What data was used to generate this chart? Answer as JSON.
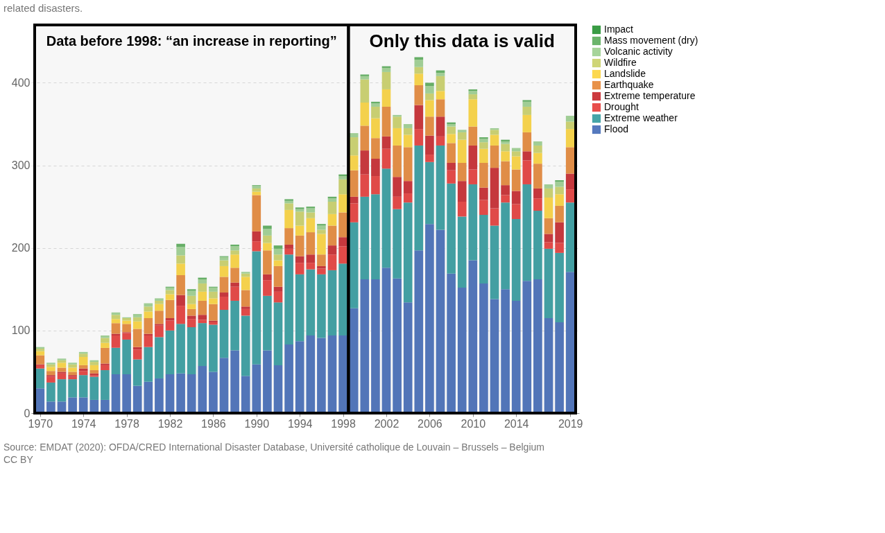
{
  "chart_data": {
    "type": "bar",
    "stacked": true,
    "subtitle": "related disasters.",
    "x": [
      1970,
      1971,
      1972,
      1973,
      1974,
      1975,
      1976,
      1977,
      1978,
      1979,
      1980,
      1981,
      1982,
      1983,
      1984,
      1985,
      1986,
      1987,
      1988,
      1989,
      1990,
      1991,
      1992,
      1993,
      1994,
      1995,
      1996,
      1997,
      1998,
      1999,
      2000,
      2001,
      2002,
      2003,
      2004,
      2005,
      2006,
      2007,
      2008,
      2009,
      2010,
      2011,
      2012,
      2013,
      2014,
      2015,
      2016,
      2017,
      2018,
      2019
    ],
    "xlim": [
      1969.5,
      2019.5
    ],
    "xticks": [
      1970,
      1974,
      1978,
      1982,
      1986,
      1990,
      1994,
      1998,
      2002,
      2006,
      2010,
      2014,
      2019
    ],
    "ylim": [
      0,
      470
    ],
    "yticks": [
      0,
      100,
      200,
      300,
      400
    ],
    "grid": "y",
    "legend": "right",
    "series": [
      {
        "name": "Flood",
        "color": "#5579be",
        "values": [
          30,
          14,
          14,
          19,
          19,
          16,
          16,
          47,
          47,
          33,
          38,
          42,
          47,
          48,
          47,
          57,
          50,
          67,
          76,
          45,
          59,
          76,
          58,
          83,
          87,
          94,
          91,
          94,
          94,
          127,
          162,
          162,
          176,
          163,
          134,
          197,
          229,
          222,
          169,
          152,
          185,
          157,
          138,
          150,
          136,
          160,
          162,
          115,
          110,
          171
        ]
      },
      {
        "name": "Extreme weather",
        "color": "#46a5a8",
        "values": [
          24,
          23,
          27,
          22,
          27,
          28,
          36,
          32,
          42,
          32,
          42,
          50,
          53,
          60,
          57,
          52,
          57,
          58,
          60,
          73,
          137,
          66,
          76,
          109,
          81,
          80,
          77,
          79,
          87,
          104,
          100,
          103,
          120,
          84,
          121,
          127,
          75,
          102,
          109,
          86,
          92,
          83,
          89,
          105,
          99,
          117,
          83,
          84,
          84,
          84
        ]
      },
      {
        "name": "Drought",
        "color": "#e84d4b",
        "values": [
          4,
          7,
          7,
          3,
          5,
          2,
          6,
          15,
          8,
          12,
          14,
          14,
          12,
          22,
          10,
          4,
          3,
          16,
          17,
          8,
          12,
          19,
          13,
          7,
          14,
          8,
          7,
          19,
          21,
          23,
          27,
          22,
          24,
          15,
          11,
          20,
          9,
          11,
          16,
          18,
          18,
          18,
          21,
          9,
          18,
          29,
          15,
          8,
          12,
          16
        ]
      },
      {
        "name": "Extreme temperature",
        "color": "#cc3a3f",
        "values": [
          1,
          2,
          2,
          2,
          3,
          2,
          2,
          2,
          1,
          3,
          2,
          2,
          3,
          13,
          4,
          6,
          2,
          5,
          5,
          3,
          12,
          7,
          6,
          5,
          8,
          10,
          3,
          11,
          11,
          8,
          29,
          21,
          15,
          24,
          15,
          29,
          23,
          24,
          9,
          25,
          29,
          15,
          49,
          12,
          16,
          11,
          12,
          10,
          25,
          19
        ]
      },
      {
        "name": "Earthquake",
        "color": "#e8924a",
        "values": [
          11,
          5,
          5,
          4,
          4,
          4,
          19,
          13,
          10,
          22,
          19,
          16,
          22,
          24,
          8,
          17,
          20,
          19,
          18,
          20,
          44,
          29,
          25,
          20,
          25,
          27,
          14,
          24,
          30,
          32,
          30,
          25,
          36,
          38,
          41,
          24,
          23,
          21,
          24,
          22,
          23,
          30,
          27,
          29,
          26,
          23,
          30,
          19,
          20,
          32
        ]
      },
      {
        "name": "Landslide",
        "color": "#fcd84f",
        "values": [
          5,
          5,
          6,
          5,
          10,
          6,
          6,
          5,
          4,
          9,
          8,
          8,
          7,
          14,
          6,
          11,
          7,
          13,
          16,
          16,
          4,
          9,
          7,
          22,
          12,
          17,
          25,
          14,
          22,
          18,
          28,
          24,
          21,
          21,
          15,
          14,
          20,
          10,
          11,
          28,
          33,
          17,
          13,
          12,
          16,
          21,
          13,
          25,
          14,
          22
        ]
      },
      {
        "name": "Wildfire",
        "color": "#cfd576",
        "values": [
          3,
          3,
          3,
          4,
          4,
          4,
          6,
          5,
          3,
          5,
          6,
          4,
          5,
          10,
          10,
          10,
          8,
          7,
          5,
          4,
          4,
          9,
          7,
          8,
          17,
          7,
          5,
          15,
          18,
          22,
          28,
          14,
          21,
          14,
          8,
          8,
          8,
          18,
          9,
          9,
          6,
          8,
          6,
          9,
          6,
          10,
          9,
          11,
          9,
          9
        ]
      },
      {
        "name": "Volcanic activity",
        "color": "#a6d49a",
        "values": [
          2,
          2,
          2,
          2,
          2,
          2,
          3,
          3,
          1,
          4,
          4,
          3,
          3,
          10,
          6,
          5,
          5,
          4,
          5,
          2,
          3,
          8,
          7,
          3,
          3,
          5,
          5,
          4,
          4,
          5,
          4,
          4,
          5,
          2,
          5,
          9,
          9,
          4,
          3,
          3,
          4,
          4,
          2,
          3,
          4,
          6,
          5,
          5,
          6,
          7
        ]
      },
      {
        "name": "Mass movement (dry)",
        "color": "#6ab46a",
        "values": [
          0,
          0,
          0,
          0,
          0,
          0,
          0,
          0,
          0,
          0,
          0,
          0,
          1,
          4,
          2,
          2,
          1,
          1,
          2,
          0,
          1,
          4,
          4,
          2,
          2,
          2,
          2,
          2,
          2,
          0,
          2,
          2,
          2,
          0,
          0,
          3,
          4,
          3,
          2,
          0,
          2,
          2,
          0,
          2,
          0,
          2,
          0,
          0,
          2,
          0
        ]
      },
      {
        "name": "Impact",
        "color": "#3a9c45",
        "values": [
          0,
          0,
          0,
          0,
          0,
          0,
          0,
          0,
          0,
          0,
          0,
          0,
          0,
          0,
          0,
          0,
          0,
          0,
          0,
          0,
          0,
          0,
          0,
          0,
          0,
          0,
          0,
          0,
          0,
          0,
          0,
          0,
          0,
          0,
          0,
          0,
          0,
          0,
          0,
          0,
          0,
          0,
          0,
          0,
          0,
          0,
          0,
          0,
          0,
          0
        ]
      }
    ],
    "bands": [
      {
        "axis": "x",
        "from": 1969.5,
        "to": 1998.5,
        "label": "Data before 1998: “an increase in reporting”",
        "color": "#000000"
      },
      {
        "axis": "x",
        "from": 1998.5,
        "to": 2019.5,
        "label": "Only this data is valid",
        "color": "#000000"
      }
    ],
    "annotations": [
      "Source: EMDAT (2020): OFDA/CRED International Disaster Database, Université catholique de Louvain – Brussels – Belgium",
      "CC BY"
    ]
  }
}
